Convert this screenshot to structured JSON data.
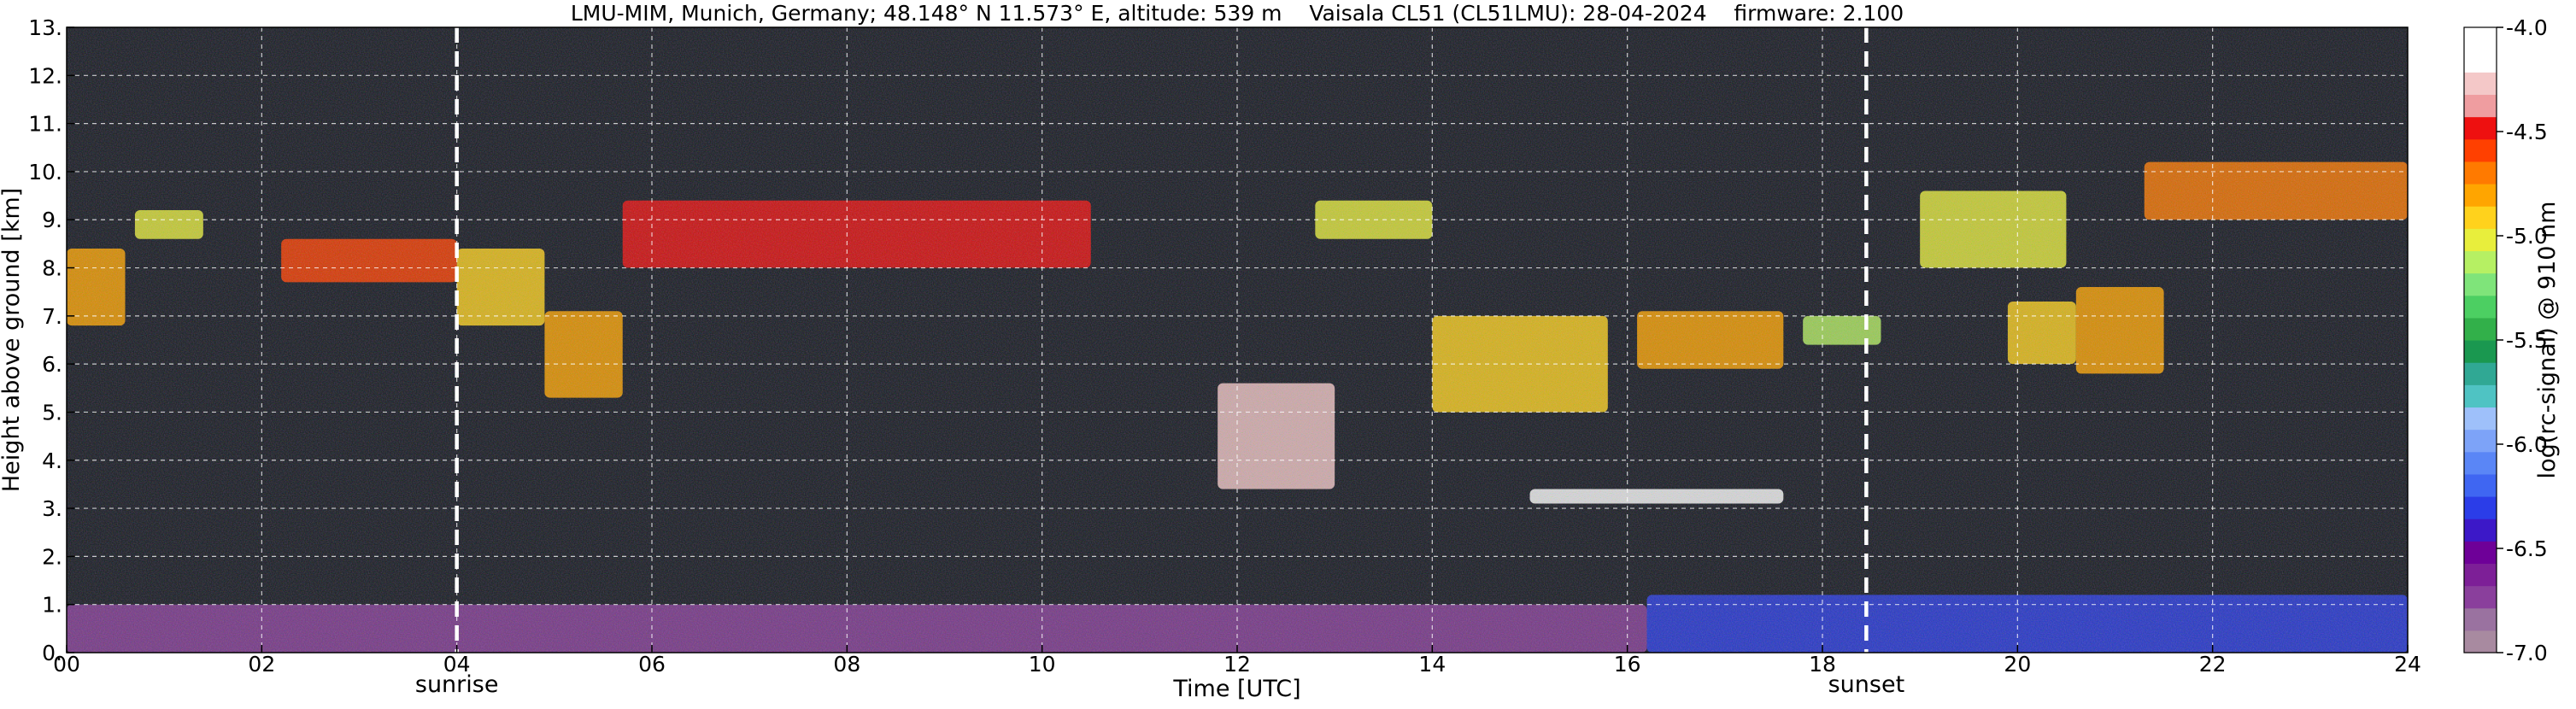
{
  "chart_data": {
    "type": "heatmap",
    "title": "LMU-MIM, Munich, Germany; 48.148° N 11.573° E, altitude: 539 m    Vaisala CL51 (CL51LMU): 28-04-2024    firmware: 2.100",
    "xlabel": "Time [UTC]",
    "ylabel": "Height above ground [km]",
    "colorbar_label": "log(rc-signal) @ 910 nm",
    "xlim": [
      0,
      24
    ],
    "ylim": [
      0,
      13
    ],
    "x_ticks": [
      0,
      2,
      4,
      6,
      8,
      10,
      12,
      14,
      16,
      18,
      20,
      22,
      24
    ],
    "x_tick_labels": [
      "00",
      "02",
      "04",
      "06",
      "08",
      "10",
      "12",
      "14",
      "16",
      "18",
      "20",
      "22",
      "24"
    ],
    "y_ticks": [
      0,
      1,
      2,
      3,
      4,
      5,
      6,
      7,
      8,
      9,
      10,
      11,
      12,
      13
    ],
    "y_tick_labels": [
      "0.",
      "1.",
      "2.",
      "3.",
      "4.",
      "5.",
      "6.",
      "7.",
      "8.",
      "9.",
      "10.",
      "11.",
      "12.",
      "13."
    ],
    "grid": true,
    "colorbar": {
      "range": [
        -7.0,
        -4.0
      ],
      "ticks": [
        -7.0,
        -6.5,
        -6.0,
        -5.5,
        -5.0,
        -4.5,
        -4.0
      ],
      "tick_labels": [
        "-7.0",
        "-6.5",
        "-6.0",
        "-5.5",
        "-5.0",
        "-4.5",
        "-4.0"
      ],
      "colors": [
        "#a88aa0",
        "#9a72a0",
        "#8a3f9c",
        "#7d1f97",
        "#6e0098",
        "#3c18c8",
        "#2b3de8",
        "#3f66f2",
        "#5a86f6",
        "#7da3f8",
        "#9ec0fa",
        "#4fc3c3",
        "#30a894",
        "#1a9850",
        "#32b04a",
        "#4ccf62",
        "#7fe47a",
        "#b6f063",
        "#e8ee3c",
        "#ffd21c",
        "#ffa500",
        "#ff7a00",
        "#ff4000",
        "#ee1010",
        "#ef9da0",
        "#f4c8c8",
        "#ffffff",
        "#ffffff"
      ]
    },
    "markers": [
      {
        "label": "sunrise",
        "x": 4.0
      },
      {
        "label": "sunset",
        "x": 18.45
      }
    ],
    "features": [
      {
        "name": "cloud layer",
        "x": [
          0.0,
          0.6
        ],
        "height_km": [
          6.8,
          8.4
        ],
        "value": -4.8
      },
      {
        "name": "cloud layer",
        "x": [
          0.7,
          1.4
        ],
        "height_km": [
          8.6,
          9.2
        ],
        "value": -5.0
      },
      {
        "name": "cloud layer",
        "x": [
          2.2,
          4.0
        ],
        "height_km": [
          7.7,
          8.6
        ],
        "value": -4.6
      },
      {
        "name": "cloud layer",
        "x": [
          4.0,
          4.9
        ],
        "height_km": [
          6.8,
          8.4
        ],
        "value": -4.9
      },
      {
        "name": "cloud layer",
        "x": [
          4.9,
          5.7
        ],
        "height_km": [
          5.3,
          7.1
        ],
        "value": -4.8
      },
      {
        "name": "cirrus layer",
        "x": [
          5.7,
          10.5
        ],
        "height_km": [
          8.0,
          9.4
        ],
        "value": -4.5
      },
      {
        "name": "cloud",
        "x": [
          11.8,
          13.0
        ],
        "height_km": [
          3.4,
          5.6
        ],
        "value": -4.3
      },
      {
        "name": "cirrus",
        "x": [
          12.8,
          14.0
        ],
        "height_km": [
          8.6,
          9.4
        ],
        "value": -5.0
      },
      {
        "name": "cloud layer",
        "x": [
          14.0,
          15.8
        ],
        "height_km": [
          5.0,
          7.0
        ],
        "value": -4.9
      },
      {
        "name": "cloud layer",
        "x": [
          15.0,
          17.6
        ],
        "height_km": [
          3.1,
          3.4
        ],
        "value": -4.2
      },
      {
        "name": "cloud layer",
        "x": [
          16.1,
          17.6
        ],
        "height_km": [
          5.9,
          7.1
        ],
        "value": -4.8
      },
      {
        "name": "cloud",
        "x": [
          17.8,
          18.6
        ],
        "height_km": [
          6.4,
          7.0
        ],
        "value": -5.1
      },
      {
        "name": "cloud layer",
        "x": [
          19.0,
          20.5
        ],
        "height_km": [
          8.0,
          9.6
        ],
        "value": -5.0
      },
      {
        "name": "cloud",
        "x": [
          19.9,
          20.6
        ],
        "height_km": [
          6.0,
          7.3
        ],
        "value": -4.9
      },
      {
        "name": "cloud",
        "x": [
          20.6,
          21.5
        ],
        "height_km": [
          5.8,
          7.6
        ],
        "value": -4.8
      },
      {
        "name": "cloud layer",
        "x": [
          21.3,
          24.0
        ],
        "height_km": [
          9.0,
          10.2
        ],
        "value": -4.7
      },
      {
        "name": "boundary layer",
        "x": [
          0.0,
          16.2
        ],
        "height_km": [
          0.0,
          1.0
        ],
        "value": -6.7
      },
      {
        "name": "boundary layer",
        "x": [
          16.2,
          24.0
        ],
        "height_km": [
          0.0,
          1.2
        ],
        "value": -6.3
      }
    ]
  }
}
